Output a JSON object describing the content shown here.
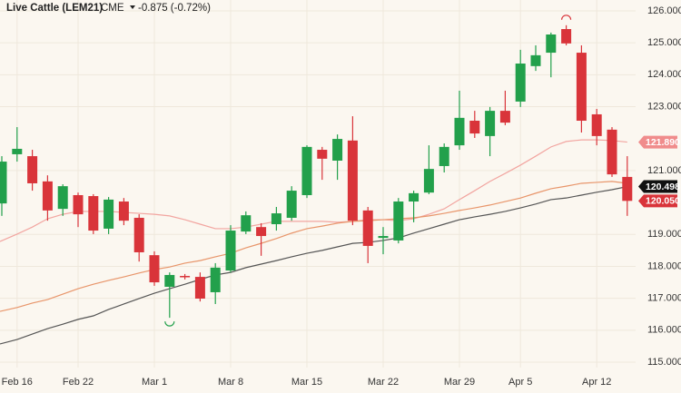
{
  "header": {
    "title": "Live Cattle (LEM21)",
    "exchange": "CME",
    "change": "-0.875 (-0.72%)"
  },
  "chart_data": {
    "type": "candlestick",
    "categories": [
      null,
      "Feb 16",
      null,
      null,
      null,
      "Feb 22",
      null,
      null,
      null,
      null,
      "Mar 1",
      null,
      null,
      null,
      null,
      "Mar 8",
      null,
      null,
      null,
      null,
      "Mar 15",
      null,
      null,
      null,
      null,
      "Mar 22",
      null,
      null,
      null,
      null,
      "Mar 29",
      null,
      null,
      null,
      "Apr 5",
      null,
      null,
      null,
      null,
      "Apr 12",
      null,
      null
    ],
    "open": [
      119.97,
      121.51,
      121.45,
      120.66,
      119.8,
      120.23,
      120.2,
      119.18,
      120.03,
      119.52,
      118.35,
      117.36,
      117.7,
      117.67,
      117.19,
      117.87,
      119.09,
      119.23,
      119.32,
      119.52,
      120.23,
      121.65,
      121.31,
      121.94,
      119.75,
      118.89,
      118.81,
      120.03,
      120.31,
      121.14,
      121.79,
      122.56,
      122.08,
      122.87,
      123.16,
      124.27,
      124.69,
      125.43,
      124.69,
      122.76,
      122.28,
      120.8
    ],
    "high": [
      121.45,
      122.36,
      121.65,
      120.85,
      120.57,
      120.31,
      120.26,
      120.17,
      120.14,
      119.63,
      118.47,
      117.81,
      117.76,
      117.81,
      118.1,
      119.29,
      119.72,
      119.35,
      119.86,
      120.51,
      121.79,
      121.74,
      122.13,
      122.7,
      119.86,
      119.23,
      120.14,
      120.37,
      121.79,
      121.85,
      123.5,
      122.87,
      122.99,
      123.5,
      124.78,
      124.92,
      125.32,
      125.55,
      124.92,
      122.93,
      122.36,
      121.45
    ],
    "low": [
      119.58,
      121.28,
      120.37,
      119.43,
      119.58,
      119.23,
      119.01,
      119.01,
      119.29,
      118.15,
      117.39,
      116.39,
      117.59,
      116.9,
      116.82,
      117.81,
      119.01,
      118.33,
      119.12,
      119.43,
      120.14,
      120.71,
      120.71,
      119.29,
      118.1,
      118.38,
      118.72,
      119.38,
      120.26,
      120.94,
      121.65,
      122.02,
      121.45,
      122.42,
      122.99,
      124.12,
      123.92,
      124.92,
      122.19,
      121.79,
      120.8,
      119.58
    ],
    "close": [
      121.28,
      121.68,
      120.6,
      119.75,
      120.51,
      119.63,
      119.12,
      120.09,
      119.43,
      118.44,
      117.5,
      117.73,
      117.67,
      116.99,
      117.96,
      119.12,
      119.6,
      118.95,
      119.66,
      120.37,
      121.74,
      121.37,
      121.99,
      119.43,
      118.64,
      118.95,
      120.03,
      120.29,
      121.05,
      121.74,
      122.65,
      122.16,
      122.87,
      122.5,
      124.35,
      124.61,
      125.26,
      124.98,
      122.56,
      122.08,
      120.88,
      120.05
    ],
    "last_close_label": "120.050",
    "up_color": "#22a04b",
    "down_color": "#d9343a",
    "overlays": [
      {
        "color": "#f2a5a0",
        "last_label": "121.890",
        "label_color": "#f08c8c",
        "values": [
          118.78,
          119.01,
          119.23,
          119.49,
          119.63,
          119.72,
          119.72,
          119.72,
          119.69,
          119.66,
          119.63,
          119.58,
          119.46,
          119.32,
          119.18,
          119.18,
          119.23,
          119.32,
          119.41,
          119.41,
          119.41,
          119.41,
          119.38,
          119.41,
          119.46,
          119.46,
          119.43,
          119.49,
          119.63,
          119.8,
          120.09,
          120.37,
          120.66,
          120.91,
          121.17,
          121.45,
          121.74,
          121.91,
          121.96,
          121.96,
          121.94,
          121.89
        ]
      },
      {
        "color": "#e8956a",
        "values": [
          116.59,
          116.71,
          116.85,
          116.96,
          117.13,
          117.3,
          117.44,
          117.56,
          117.67,
          117.79,
          117.9,
          117.98,
          118.1,
          118.18,
          118.3,
          118.41,
          118.58,
          118.72,
          118.87,
          119.04,
          119.18,
          119.26,
          119.35,
          119.41,
          119.43,
          119.46,
          119.49,
          119.52,
          119.58,
          119.66,
          119.75,
          119.83,
          119.92,
          120.03,
          120.14,
          120.29,
          120.43,
          120.51,
          120.6,
          120.63,
          120.66,
          120.6
        ]
      },
      {
        "color": "#555555",
        "last_label": "120.498",
        "label_color": "#111111",
        "values": [
          115.57,
          115.71,
          115.88,
          116.05,
          116.19,
          116.34,
          116.45,
          116.65,
          116.82,
          116.99,
          117.16,
          117.3,
          117.44,
          117.59,
          117.73,
          117.81,
          117.96,
          118.07,
          118.18,
          118.3,
          118.41,
          118.5,
          118.61,
          118.72,
          118.75,
          118.81,
          118.89,
          119.04,
          119.18,
          119.32,
          119.46,
          119.55,
          119.63,
          119.72,
          119.83,
          119.95,
          120.09,
          120.14,
          120.23,
          120.32,
          120.4,
          120.498
        ]
      }
    ],
    "ylim": [
      114.83,
      126.34
    ],
    "yticks": [
      {
        "value": 115,
        "label": "115.000"
      },
      {
        "value": 116,
        "label": "116.000"
      },
      {
        "value": 117,
        "label": "117.000"
      },
      {
        "value": 118,
        "label": "118.000"
      },
      {
        "value": 119,
        "label": "119.000"
      },
      {
        "value": 121,
        "label": "121.000"
      },
      {
        "value": 123,
        "label": "123.000"
      },
      {
        "value": 124,
        "label": "124.000"
      },
      {
        "value": 125,
        "label": "125.000"
      },
      {
        "value": 126,
        "label": "126.000"
      }
    ],
    "grid": true
  }
}
